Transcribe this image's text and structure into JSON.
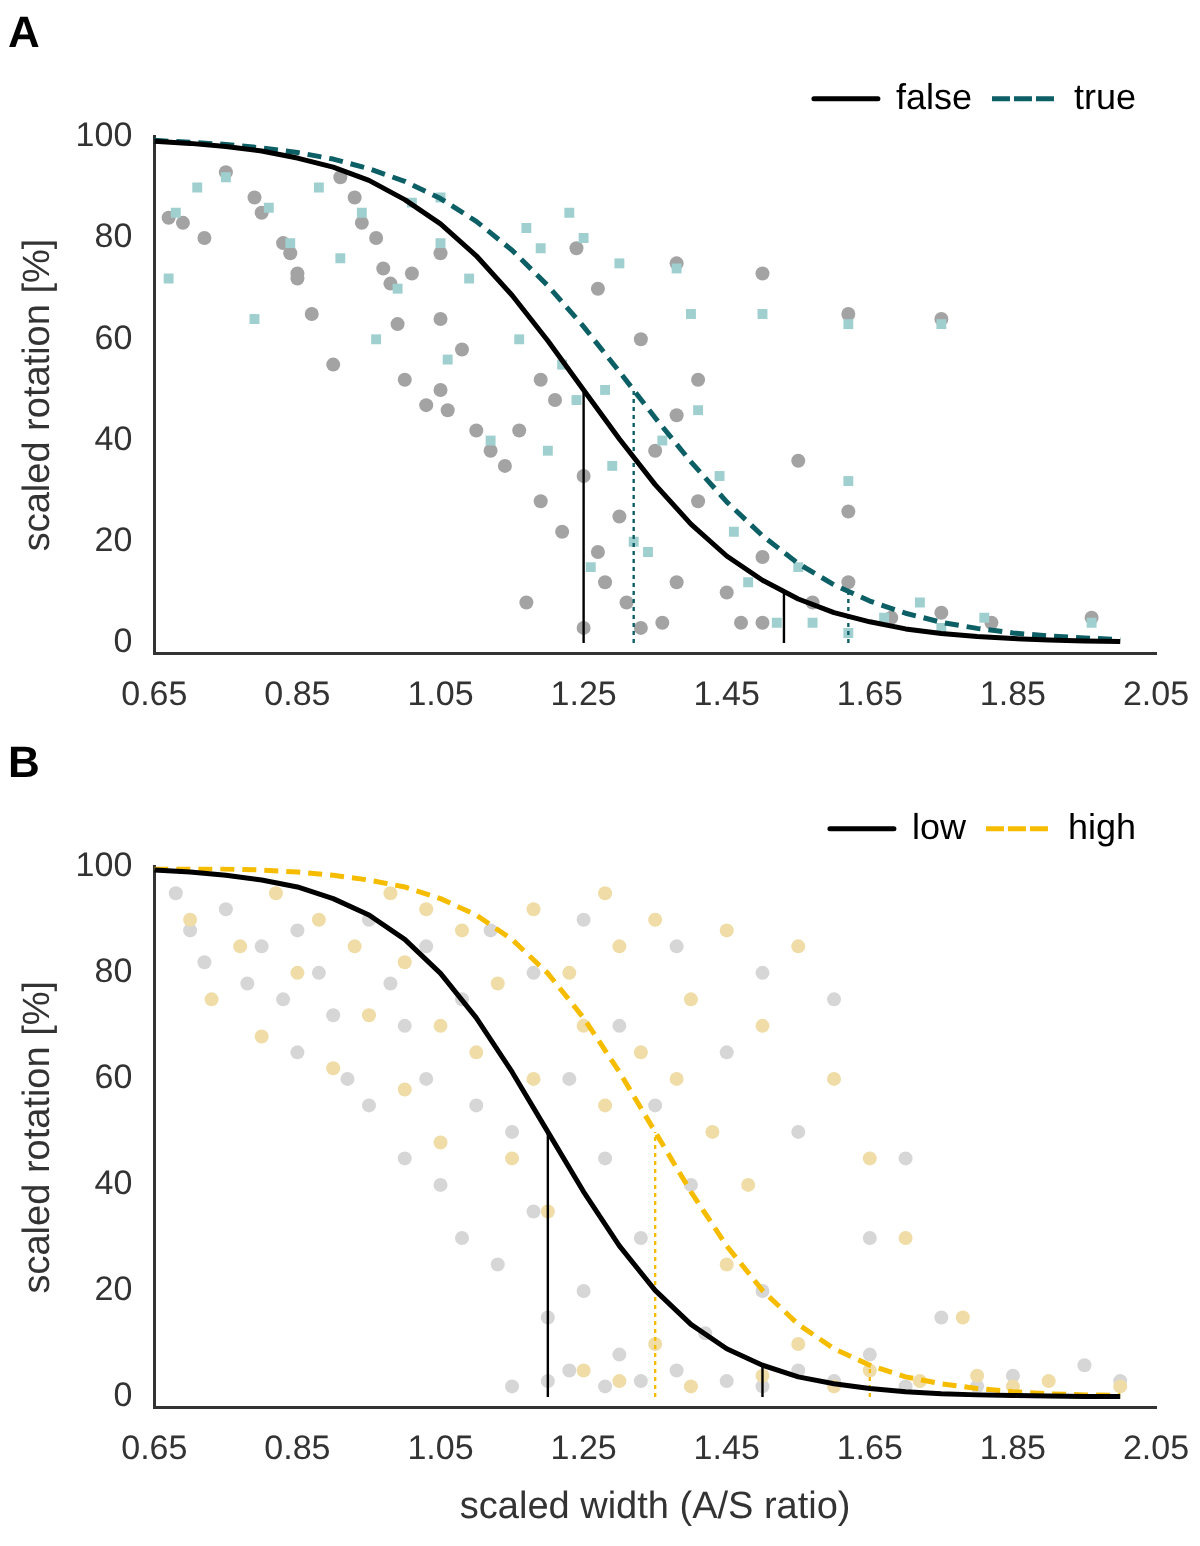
{
  "chart_data": [
    {
      "type": "scatter",
      "title": "A",
      "ylabel": "scaled rotation [%]",
      "xlim": [
        0.65,
        2.05
      ],
      "xticks": [
        0.65,
        0.85,
        1.05,
        1.25,
        1.45,
        1.65,
        1.85,
        2.05
      ],
      "ylim": [
        -2,
        100
      ],
      "yticks": [
        0,
        20,
        40,
        60,
        80,
        100
      ],
      "legend": "top right",
      "series": [
        {
          "marker": "circle",
          "color": "#a3a3a3",
          "x": [
            0.67,
            0.69,
            0.72,
            0.75,
            0.79,
            0.8,
            0.83,
            0.84,
            0.85,
            0.87,
            0.9,
            0.91,
            0.93,
            0.94,
            0.96,
            0.97,
            0.98,
            0.99,
            1.01,
            1.03,
            1.05,
            1.06,
            1.08,
            1.1,
            1.12,
            1.14,
            1.16,
            1.17,
            1.19,
            1.19,
            1.21,
            1.22,
            1.24,
            1.25,
            1.25,
            1.27,
            1.27,
            1.28,
            1.3,
            1.31,
            1.33,
            1.33,
            1.35,
            1.36,
            1.38,
            1.38,
            1.38,
            1.41,
            1.41,
            1.45,
            1.47,
            1.5,
            1.5,
            1.5,
            1.55,
            1.57,
            1.62,
            1.62,
            1.62,
            1.68,
            1.75,
            1.75,
            1.82,
            1.96,
            1.05,
            1.05,
            0.85,
            1.0
          ],
          "values": [
            84,
            83,
            80,
            93,
            88,
            85,
            79,
            77,
            73,
            65,
            55,
            92,
            88,
            83,
            80,
            74,
            71,
            63,
            73,
            47,
            50,
            46,
            58,
            42,
            38,
            35,
            42,
            8,
            52,
            28,
            48,
            22,
            78,
            33,
            3,
            70,
            18,
            12,
            25,
            8,
            60,
            3,
            38,
            4,
            75,
            45,
            12,
            52,
            28,
            10,
            4,
            73,
            17,
            4,
            36,
            8,
            65,
            26,
            12,
            5,
            64,
            6,
            4,
            5,
            77,
            64,
            72,
            52
          ]
        },
        {
          "marker": "square",
          "color": "#9fcfcf",
          "x": [
            0.67,
            0.68,
            0.71,
            0.75,
            0.79,
            0.81,
            0.84,
            0.88,
            0.91,
            0.94,
            0.96,
            0.99,
            1.01,
            1.05,
            1.05,
            1.06,
            1.09,
            1.12,
            1.16,
            1.17,
            1.19,
            1.2,
            1.22,
            1.23,
            1.24,
            1.25,
            1.26,
            1.28,
            1.29,
            1.3,
            1.32,
            1.34,
            1.36,
            1.38,
            1.4,
            1.41,
            1.44,
            1.46,
            1.48,
            1.5,
            1.52,
            1.55,
            1.57,
            1.62,
            1.62,
            1.62,
            1.67,
            1.72,
            1.75,
            1.75,
            1.81,
            1.96
          ],
          "values": [
            72,
            85,
            90,
            92,
            64,
            86,
            79,
            90,
            76,
            85,
            60,
            70,
            87,
            79,
            88,
            56,
            72,
            40,
            60,
            82,
            78,
            38,
            55,
            85,
            48,
            80,
            15,
            50,
            35,
            75,
            20,
            18,
            40,
            74,
            65,
            46,
            33,
            22,
            12,
            65,
            4,
            15,
            4,
            63,
            32,
            2,
            5,
            8,
            63,
            3,
            5,
            4
          ]
        },
        {
          "type": "line",
          "name": "false",
          "color": "#000000",
          "line_style": "solid",
          "x": [
            0.65,
            0.7,
            0.75,
            0.8,
            0.85,
            0.9,
            0.95,
            1.0,
            1.05,
            1.1,
            1.15,
            1.2,
            1.25,
            1.3,
            1.35,
            1.4,
            1.45,
            1.5,
            1.55,
            1.6,
            1.65,
            1.7,
            1.75,
            1.8,
            1.85,
            1.9,
            1.95,
            2.0
          ],
          "values": [
            99.1,
            98.7,
            98.1,
            97.2,
            95.8,
            94.0,
            91.4,
            87.6,
            82.8,
            76.5,
            68.7,
            59.7,
            50,
            40.3,
            31.3,
            23.5,
            17.2,
            12.4,
            8.7,
            6.0,
            4.2,
            2.8,
            1.9,
            1.3,
            0.9,
            0.6,
            0.4,
            0.3
          ]
        },
        {
          "type": "line",
          "name": "true",
          "color": "#0d5f66",
          "line_style": "dashed",
          "x": [
            0.65,
            0.7,
            0.75,
            0.8,
            0.85,
            0.9,
            0.95,
            1.0,
            1.05,
            1.1,
            1.15,
            1.2,
            1.25,
            1.3,
            1.35,
            1.4,
            1.45,
            1.5,
            1.55,
            1.6,
            1.65,
            1.7,
            1.75,
            1.8,
            1.85,
            1.9,
            1.95,
            2.0
          ],
          "values": [
            99.3,
            98.9,
            98.5,
            97.8,
            96.9,
            95.6,
            93.7,
            91.2,
            87.8,
            83.3,
            77.6,
            70.6,
            62.5,
            53.6,
            44.5,
            35.8,
            27.9,
            21.2,
            15.7,
            11.5,
            8.3,
            5.9,
            4.1,
            2.9,
            2.0,
            1.4,
            1.0,
            0.7
          ]
        },
        {
          "type": "line",
          "color": "#000000",
          "line_style": "solid",
          "x": [
            1.25,
            1.25
          ],
          "values": [
            0,
            50
          ]
        },
        {
          "type": "line",
          "color": "#000000",
          "line_style": "solid",
          "x": [
            1.53,
            1.53
          ],
          "values": [
            0,
            10
          ]
        },
        {
          "type": "line",
          "color": "#0d5f66",
          "line_style": "dotted",
          "x": [
            1.32,
            1.32
          ],
          "values": [
            0,
            50
          ]
        },
        {
          "type": "line",
          "color": "#0d5f66",
          "line_style": "dotted",
          "x": [
            1.62,
            1.62
          ],
          "values": [
            0,
            10
          ]
        }
      ]
    },
    {
      "type": "scatter",
      "title": "B",
      "xlabel": "scaled width (A/S ratio)",
      "ylabel": "scaled rotation [%]",
      "xlim": [
        0.65,
        2.05
      ],
      "xticks": [
        0.65,
        0.85,
        1.05,
        1.25,
        1.45,
        1.65,
        1.85,
        2.05
      ],
      "ylim": [
        -2,
        100
      ],
      "yticks": [
        0,
        20,
        40,
        60,
        80,
        100
      ],
      "legend": "top right",
      "series": [
        {
          "marker": "circle",
          "color": "#d6d6d6",
          "x": [
            0.68,
            0.7,
            0.72,
            0.75,
            0.78,
            0.8,
            0.83,
            0.85,
            0.85,
            0.88,
            0.9,
            0.92,
            0.95,
            0.95,
            0.98,
            1.0,
            1.0,
            1.03,
            1.03,
            1.05,
            1.08,
            1.08,
            1.1,
            1.12,
            1.13,
            1.15,
            1.15,
            1.18,
            1.18,
            1.2,
            1.2,
            1.23,
            1.23,
            1.25,
            1.25,
            1.28,
            1.28,
            1.3,
            1.3,
            1.33,
            1.33,
            1.35,
            1.38,
            1.38,
            1.4,
            1.42,
            1.45,
            1.45,
            1.5,
            1.5,
            1.5,
            1.55,
            1.55,
            1.6,
            1.6,
            1.65,
            1.65,
            1.7,
            1.7,
            1.75,
            1.8,
            1.85,
            1.95,
            2.0
          ],
          "values": [
            95,
            88,
            82,
            92,
            78,
            85,
            75,
            88,
            65,
            80,
            72,
            60,
            90,
            55,
            78,
            70,
            45,
            85,
            60,
            40,
            75,
            30,
            55,
            88,
            25,
            50,
            2,
            80,
            35,
            15,
            3,
            60,
            5,
            90,
            20,
            45,
            2,
            70,
            8,
            30,
            3,
            55,
            85,
            5,
            40,
            12,
            65,
            3,
            80,
            20,
            2,
            50,
            5,
            75,
            3,
            30,
            8,
            45,
            2,
            15,
            2,
            4,
            6,
            3
          ]
        },
        {
          "marker": "circle",
          "color": "#efdca6",
          "x": [
            0.7,
            0.73,
            0.77,
            0.8,
            0.82,
            0.85,
            0.88,
            0.9,
            0.93,
            0.95,
            0.98,
            1.0,
            1.0,
            1.03,
            1.05,
            1.05,
            1.08,
            1.1,
            1.13,
            1.15,
            1.18,
            1.18,
            1.2,
            1.23,
            1.25,
            1.25,
            1.28,
            1.28,
            1.3,
            1.3,
            1.33,
            1.35,
            1.35,
            1.38,
            1.4,
            1.4,
            1.43,
            1.45,
            1.45,
            1.48,
            1.5,
            1.5,
            1.55,
            1.55,
            1.6,
            1.6,
            1.65,
            1.65,
            1.7,
            1.72,
            1.78,
            1.8,
            1.85,
            1.9,
            2.0
          ],
          "values": [
            90,
            75,
            85,
            68,
            95,
            80,
            90,
            62,
            85,
            72,
            95,
            82,
            58,
            92,
            70,
            48,
            88,
            65,
            78,
            45,
            92,
            60,
            35,
            80,
            70,
            5,
            95,
            55,
            85,
            3,
            65,
            90,
            10,
            60,
            75,
            2,
            50,
            88,
            25,
            40,
            70,
            4,
            85,
            10,
            60,
            2,
            45,
            5,
            30,
            3,
            15,
            4,
            2,
            3,
            2
          ]
        },
        {
          "type": "line",
          "name": "low",
          "color": "#000000",
          "line_style": "solid",
          "x": [
            0.65,
            0.7,
            0.75,
            0.8,
            0.85,
            0.9,
            0.95,
            1.0,
            1.05,
            1.1,
            1.15,
            1.2,
            1.25,
            1.3,
            1.35,
            1.4,
            1.45,
            1.5,
            1.55,
            1.6,
            1.65,
            1.7,
            1.75,
            1.8,
            1.85,
            1.9,
            1.95,
            2.0
          ],
          "values": [
            99.4,
            99.0,
            98.4,
            97.5,
            96.2,
            94.0,
            90.9,
            86.3,
            79.9,
            71.5,
            61.3,
            50,
            38.7,
            28.5,
            20.1,
            13.7,
            9.1,
            6.0,
            3.8,
            2.5,
            1.6,
            1.0,
            0.6,
            0.4,
            0.3,
            0.2,
            0.1,
            0.1
          ]
        },
        {
          "type": "line",
          "name": "high",
          "color": "#f5bc00",
          "line_style": "dashed",
          "x": [
            0.65,
            0.7,
            0.75,
            0.8,
            0.85,
            0.9,
            0.95,
            1.0,
            1.05,
            1.1,
            1.15,
            1.2,
            1.25,
            1.3,
            1.35,
            1.4,
            1.45,
            1.5,
            1.55,
            1.6,
            1.65,
            1.7,
            1.75,
            1.8,
            1.85,
            1.9,
            1.95,
            2.0
          ],
          "values": [
            99.8,
            99.7,
            99.6,
            99.4,
            99.0,
            98.4,
            97.5,
            96.2,
            94.0,
            90.9,
            86.3,
            79.9,
            71.5,
            61.3,
            50,
            38.7,
            28.5,
            20.1,
            13.7,
            9.1,
            6.0,
            3.8,
            2.5,
            1.6,
            1.0,
            0.6,
            0.4,
            0.3
          ]
        },
        {
          "type": "line",
          "color": "#000000",
          "line_style": "solid",
          "x": [
            1.2,
            1.2
          ],
          "values": [
            0,
            50
          ]
        },
        {
          "type": "line",
          "color": "#000000",
          "line_style": "solid",
          "x": [
            1.5,
            1.5
          ],
          "values": [
            0,
            6
          ]
        },
        {
          "type": "line",
          "color": "#f5bc00",
          "line_style": "dotted",
          "x": [
            1.35,
            1.35
          ],
          "values": [
            0,
            50
          ]
        },
        {
          "type": "line",
          "color": "#f5bc00",
          "line_style": "dotted",
          "x": [
            1.65,
            1.65
          ],
          "values": [
            0,
            6
          ]
        }
      ]
    }
  ]
}
